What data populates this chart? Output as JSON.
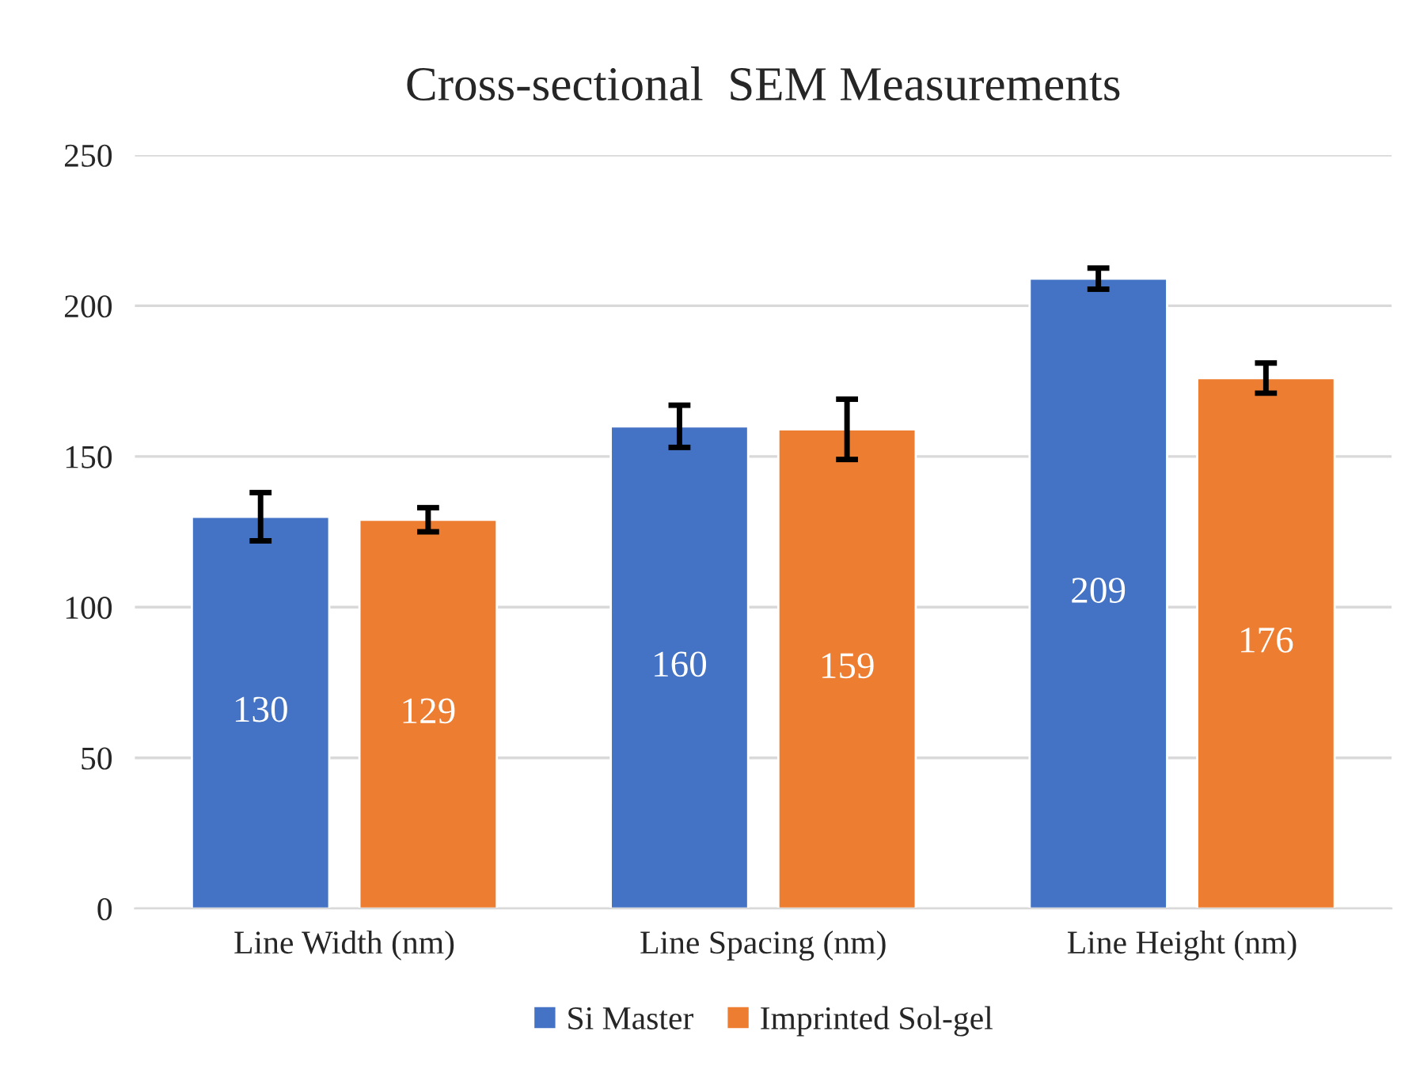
{
  "chart_data": {
    "type": "bar",
    "title": "Cross-sectional  SEM Measurements",
    "categories": [
      "Line Width (nm)",
      "Line Spacing (nm)",
      "Line Height (nm)"
    ],
    "series": [
      {
        "name": "Si Master",
        "color": "#4472c4",
        "values": [
          130,
          160,
          209
        ],
        "errors": [
          8,
          7,
          3.5
        ]
      },
      {
        "name": "Imprinted Sol-gel",
        "color": "#ed7d31",
        "values": [
          129,
          159,
          176
        ],
        "errors": [
          4,
          10,
          5
        ]
      }
    ],
    "ylim": [
      0,
      250
    ],
    "yticks": [
      0,
      50,
      100,
      150,
      200,
      250
    ],
    "grid": "y",
    "legend": "bottom",
    "data_labels": true
  }
}
